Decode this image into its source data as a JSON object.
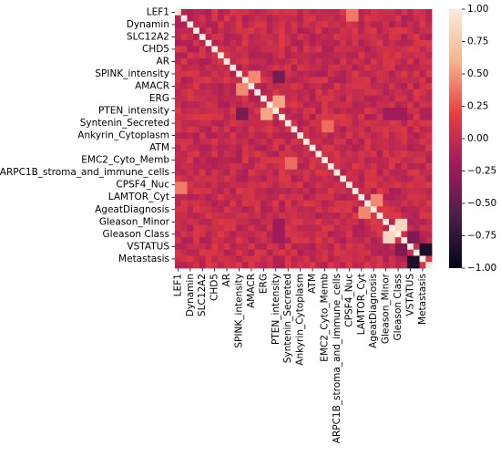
{
  "chart_data": {
    "type": "heatmap",
    "title": "",
    "xlabel": "",
    "ylabel": "",
    "variables": [
      "LEF1",
      "",
      "Dynamin",
      "",
      "SLC12A2",
      "",
      "CHD5",
      "",
      "AR",
      "",
      "SPINK_intensity",
      "",
      "AMACR",
      "",
      "ERG",
      "",
      "PTEN_intensity",
      "",
      "Syntenin_Secreted",
      "",
      "Ankyrin_Cytoplasm",
      "",
      "ATM",
      "",
      "EMC2_Cyto_Memb",
      "",
      "ARPC1B_stroma_and_immune_cells",
      "",
      "CPSF4_Nuc",
      "",
      "LAMTOR_Cyt",
      "",
      "AgeatDiagnosis",
      "",
      "Gleason_Minor",
      "",
      "Gleason Class",
      "",
      "VSTATUS",
      "",
      "Metastasis",
      ""
    ],
    "x_tick_labels": [
      "LEF1",
      "Dynamin",
      "SLC12A2",
      "CHD5",
      "AR",
      "SPINK_intensity",
      "AMACR",
      "ERG",
      "PTEN_intensity",
      "Syntenin_Secreted",
      "Ankyrin_Cytoplasm",
      "ATM",
      "EMC2_Cyto_Memb",
      "ARPC1B_stroma_and_immune_cells",
      "CPSF4_Nuc",
      "LAMTOR_Cyt",
      "AgeatDiagnosis",
      "Gleason_Minor",
      "Gleason Class",
      "VSTATUS",
      "Metastasis"
    ],
    "y_tick_labels": [
      "LEF1",
      "Dynamin",
      "SLC12A2",
      "CHD5",
      "AR",
      "SPINK_intensity",
      "AMACR",
      "ERG",
      "PTEN_intensity",
      "Syntenin_Secreted",
      "Ankyrin_Cytoplasm",
      "ATM",
      "EMC2_Cyto_Memb",
      "ARPC1B_stroma_and_immune_cells",
      "CPSF4_Nuc",
      "LAMTOR_Cyt",
      "AgeatDiagnosis",
      "Gleason_Minor",
      "Gleason Class",
      "VSTATUS",
      "Metastasis"
    ],
    "value_range": [
      -1.0,
      1.0
    ],
    "colorbar": {
      "ticks": [
        1.0,
        0.75,
        0.5,
        0.25,
        0.0,
        -0.25,
        -0.5,
        -0.75,
        -1.0
      ],
      "tick_labels": [
        "1.00",
        "0.75",
        "0.50",
        "0.25",
        "0.00",
        "−0.25",
        "−0.50",
        "−0.75",
        "−1.00"
      ],
      "colormap": "rocket",
      "colormap_stops": [
        "#03051a",
        "#4c1d4b",
        "#a11a5b",
        "#e83f3f",
        "#f6b48f",
        "#faebdd"
      ]
    },
    "cells": {
      "diagonal": 1.0,
      "default": 0.0,
      "notable": [
        {
          "row": "SPINK_intensity",
          "col": "AMACR",
          "value": 0.45
        },
        {
          "row": "AMACR",
          "col": "SPINK_intensity",
          "value": 0.45
        },
        {
          "row": "SPINK_intensity",
          "col": "PTEN_intensity",
          "value": -0.4
        },
        {
          "row": "PTEN_intensity",
          "col": "SPINK_intensity",
          "value": -0.4
        },
        {
          "row": "ERG",
          "col": "PTEN_intensity",
          "value": 0.55
        },
        {
          "row": "PTEN_intensity",
          "col": "ERG",
          "value": 0.55
        },
        {
          "row": "LEF1",
          "col": "CPSF4_Nuc",
          "value": 0.4
        },
        {
          "row": "CPSF4_Nuc",
          "col": "LEF1",
          "value": 0.4
        },
        {
          "row": "Syntenin_Secreted",
          "col": "EMC2_Cyto_Memb",
          "value": 0.35
        },
        {
          "row": "EMC2_Cyto_Memb",
          "col": "Syntenin_Secreted",
          "value": 0.35
        },
        {
          "row": "AgeatDiagnosis",
          "col": "LAMTOR_Cyt",
          "value": 0.45
        },
        {
          "row": "LAMTOR_Cyt",
          "col": "AgeatDiagnosis",
          "value": 0.45
        },
        {
          "row": "Gleason_Minor",
          "col": "Gleason Class",
          "value": 0.85
        },
        {
          "row": "Gleason Class",
          "col": "Gleason_Minor",
          "value": 0.85
        },
        {
          "row": "Gleason Class",
          "col": "VSTATUS",
          "value": -0.35
        },
        {
          "row": "VSTATUS",
          "col": "Gleason Class",
          "value": -0.35
        },
        {
          "row": "VSTATUS",
          "col": "Metastasis",
          "value": -0.85
        },
        {
          "row": "Metastasis",
          "col": "VSTATUS",
          "value": -0.85
        },
        {
          "row": "Gleason_Minor",
          "col": "PTEN_intensity",
          "value": -0.2
        },
        {
          "row": "PTEN_intensity",
          "col": "Gleason_Minor",
          "value": -0.2
        },
        {
          "row": "Gleason Class",
          "col": "PTEN_intensity",
          "value": -0.2
        },
        {
          "row": "PTEN_intensity",
          "col": "Gleason Class",
          "value": -0.2
        }
      ]
    },
    "grid": false,
    "legend": "colorbar-right"
  }
}
